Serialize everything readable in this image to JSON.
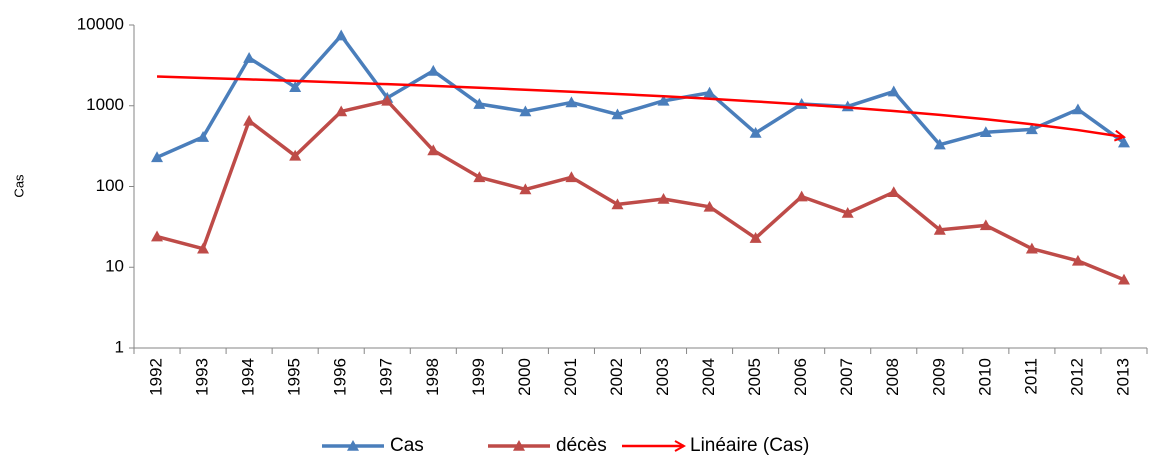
{
  "chart_data": {
    "type": "line",
    "y_label": "Cas",
    "log_scale": true,
    "grid": false,
    "legend": "bottom",
    "categories": [
      "1992",
      "1993",
      "1994",
      "1995",
      "1996",
      "1997",
      "1998",
      "1999",
      "2000",
      "2001",
      "2002",
      "2003",
      "2004",
      "2005",
      "2006",
      "2007",
      "2008",
      "2009",
      "2010",
      "2011",
      "2012",
      "2013"
    ],
    "ylim": [
      1,
      10000
    ],
    "yticks": [
      1,
      10,
      100,
      1000,
      10000
    ],
    "series": [
      {
        "name": "Cas",
        "color": "#4a7ebb",
        "marker": "triangle",
        "values": [
          230,
          410,
          3900,
          1700,
          7400,
          1250,
          2700,
          1050,
          850,
          1100,
          780,
          1150,
          1450,
          460,
          1050,
          980,
          1500,
          330,
          470,
          510,
          900,
          350
        ]
      },
      {
        "name": "décès",
        "color": "#be4b48",
        "marker": "triangle",
        "values": [
          24,
          17,
          650,
          240,
          850,
          1150,
          280,
          130,
          92,
          130,
          60,
          70,
          56,
          23,
          75,
          47,
          85,
          29,
          33,
          17,
          12,
          7
        ]
      },
      {
        "name": "Linéaire (Cas)",
        "color": "#ff0000",
        "marker": "arrow",
        "values": [
          2300,
          2210,
          2120,
          2030,
          1940,
          1850,
          1760,
          1670,
          1580,
          1490,
          1400,
          1310,
          1220,
          1130,
          1040,
          950,
          860,
          770,
          680,
          590,
          500,
          410
        ]
      }
    ]
  }
}
